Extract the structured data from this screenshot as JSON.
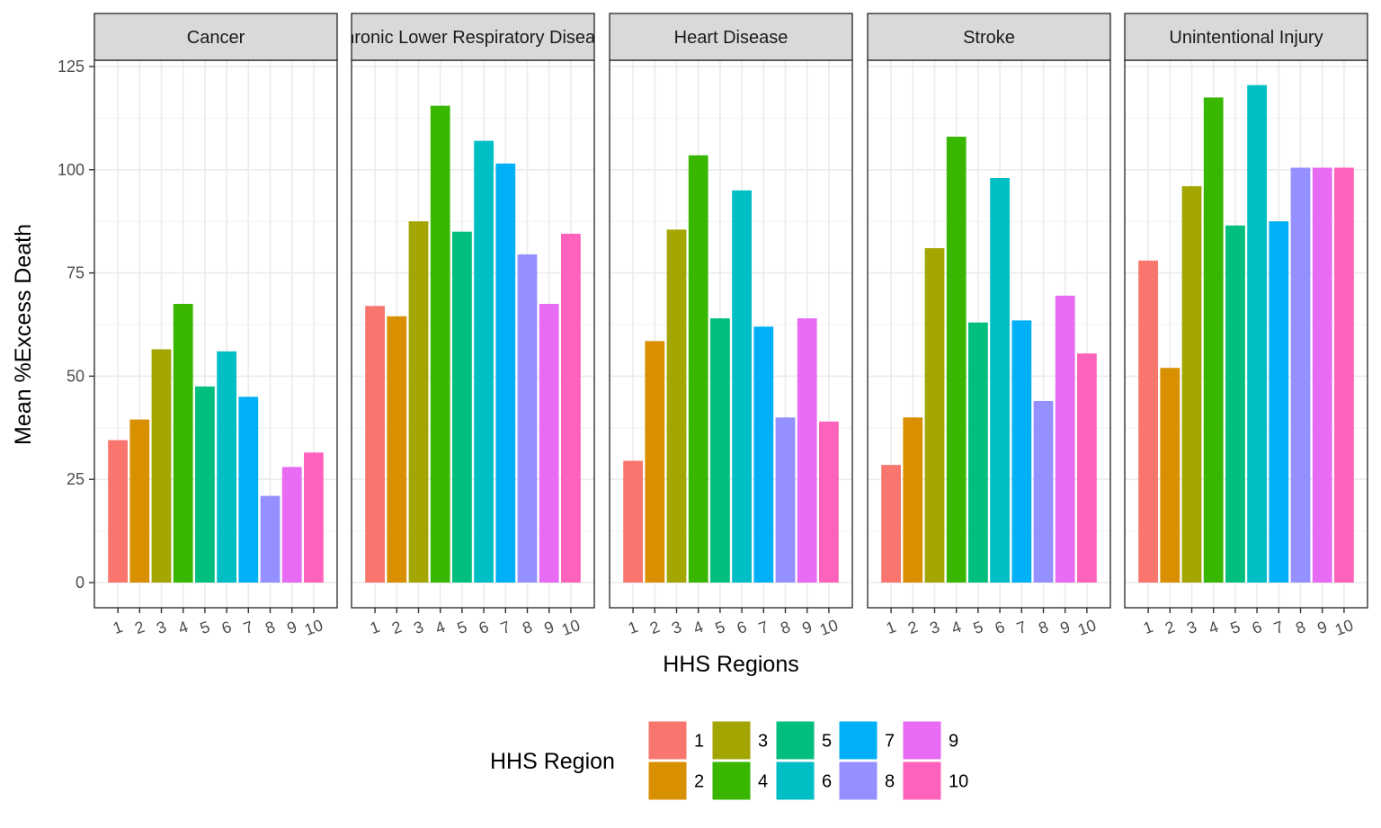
{
  "chart_data": {
    "type": "bar",
    "xlabel": "HHS Regions",
    "ylabel": "Mean %Excess Death",
    "ylim": [
      0,
      125
    ],
    "yticks": [
      0,
      25,
      50,
      75,
      100,
      125
    ],
    "grid": true,
    "categories": [
      "1",
      "2",
      "3",
      "4",
      "5",
      "6",
      "7",
      "8",
      "9",
      "10"
    ],
    "panels": [
      {
        "label": "Cancer",
        "values": [
          34.5,
          39.5,
          56.5,
          67.5,
          47.5,
          56,
          45,
          21,
          28,
          31.5
        ]
      },
      {
        "label": "Chronic Lower Respiratory Disease",
        "values": [
          67,
          64.5,
          87.5,
          115.5,
          85,
          107,
          101.5,
          79.5,
          67.5,
          84.5
        ]
      },
      {
        "label": "Heart Disease",
        "values": [
          29.5,
          58.5,
          85.5,
          103.5,
          64,
          95,
          62,
          40,
          64,
          39
        ]
      },
      {
        "label": "Stroke",
        "values": [
          28.5,
          40,
          81,
          108,
          63,
          98,
          63.5,
          44,
          69.5,
          55.5
        ]
      },
      {
        "label": "Unintentional Injury",
        "values": [
          78,
          52,
          96,
          117.5,
          86.5,
          120.5,
          87.5,
          100.5,
          100.5,
          100.5
        ]
      }
    ],
    "legend": {
      "title": "HHS Region",
      "position": "bottom",
      "items": [
        "1",
        "2",
        "3",
        "4",
        "5",
        "6",
        "7",
        "8",
        "9",
        "10"
      ]
    },
    "colors": [
      "#F8766D",
      "#D89000",
      "#A3A500",
      "#39B600",
      "#00BF7D",
      "#00BFC4",
      "#00B0F6",
      "#9590FF",
      "#E76BF3",
      "#FF62BC"
    ]
  }
}
